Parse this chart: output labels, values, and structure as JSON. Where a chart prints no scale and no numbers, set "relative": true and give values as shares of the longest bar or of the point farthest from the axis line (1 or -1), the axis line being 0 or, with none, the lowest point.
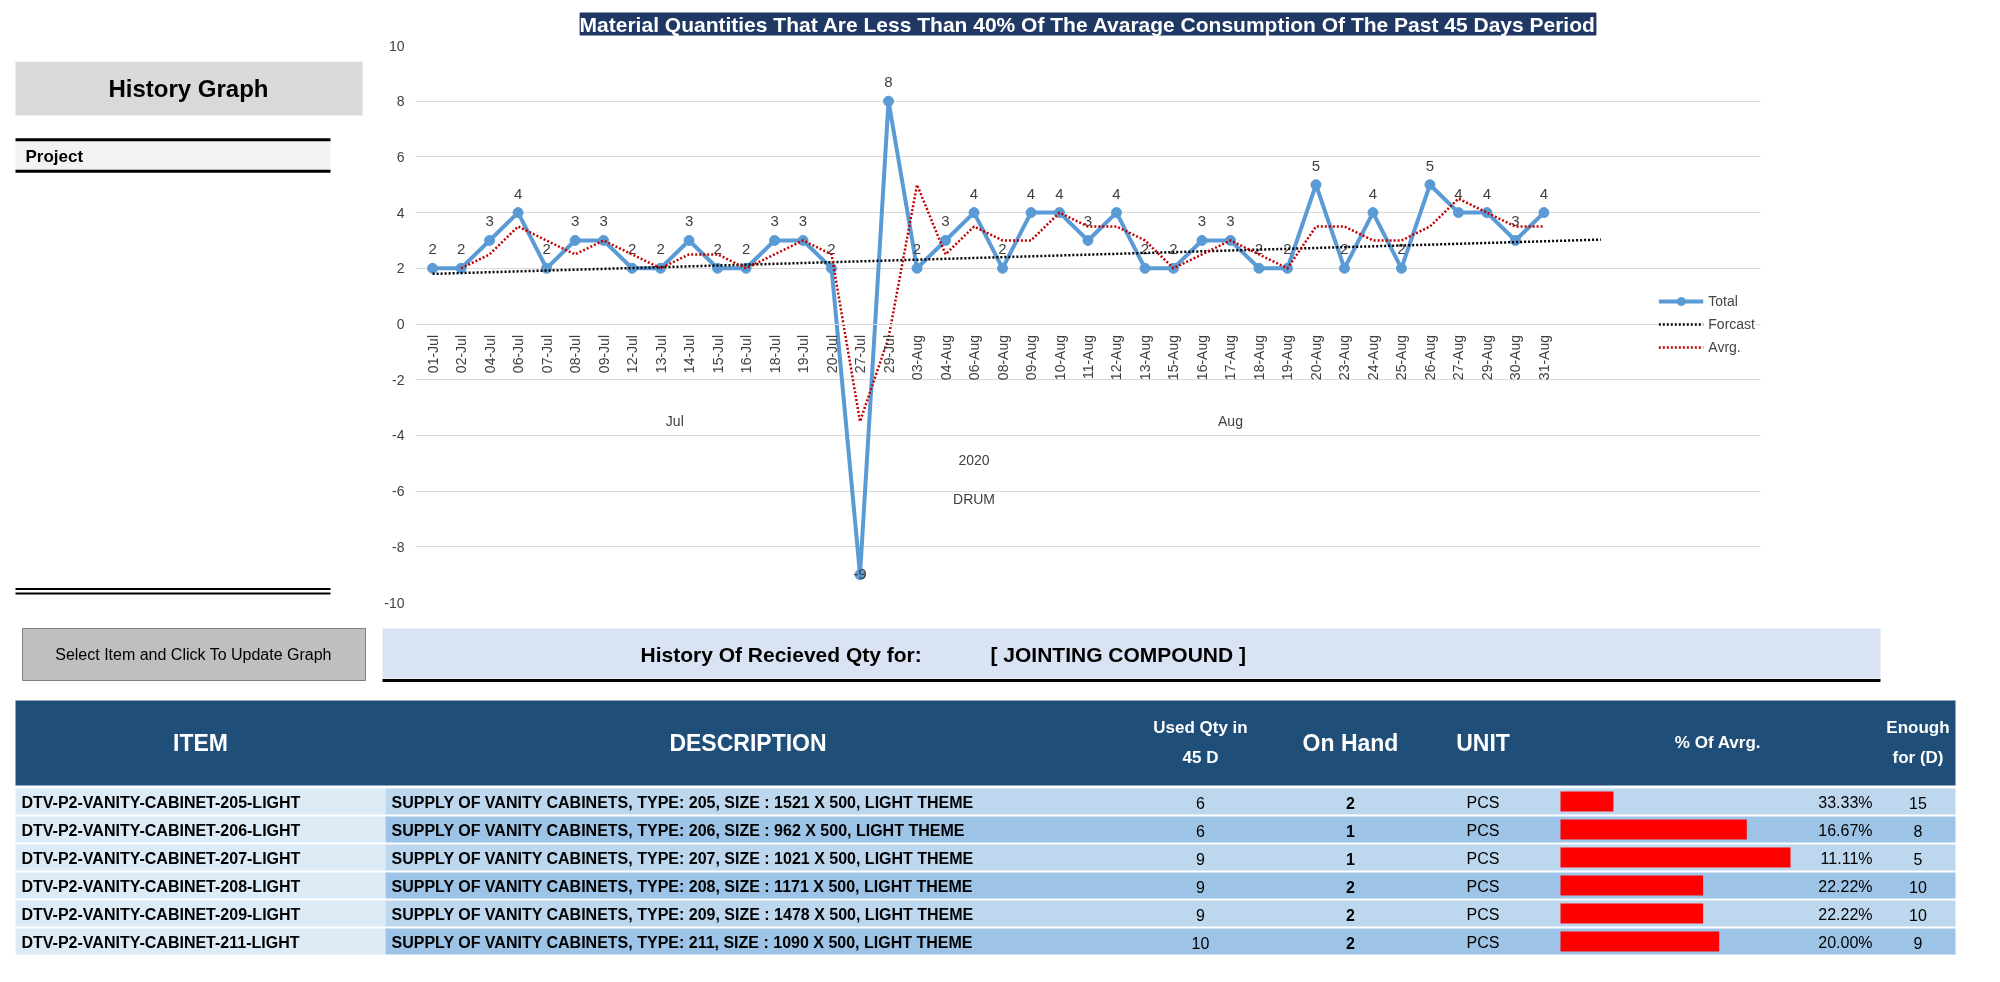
{
  "chart_data": [
    {
      "type": "line",
      "title": "Material Quantities That Are Less Than 40% Of The Avarage Consumption Of The Past 45 Days Period",
      "categories": [
        "01-Jul",
        "02-Jul",
        "04-Jul",
        "06-Jul",
        "07-Jul",
        "08-Jul",
        "09-Jul",
        "12-Jul",
        "13-Jul",
        "14-Jul",
        "15-Jul",
        "16-Jul",
        "18-Jul",
        "19-Jul",
        "20-Jul",
        "27-Jul",
        "29-Jul",
        "03-Aug",
        "04-Aug",
        "06-Aug",
        "08-Aug",
        "09-Aug",
        "10-Aug",
        "11-Aug",
        "12-Aug",
        "13-Aug",
        "15-Aug",
        "16-Aug",
        "17-Aug",
        "18-Aug",
        "19-Aug",
        "20-Aug",
        "23-Aug",
        "24-Aug",
        "25-Aug",
        "26-Aug",
        "27-Aug",
        "29-Aug",
        "30-Aug",
        "31-Aug",
        null,
        null
      ],
      "series": [
        {
          "name": "Total",
          "color": "#5b9bd5",
          "marker": "circle",
          "line_style": "solid",
          "data_labels": true,
          "values": [
            2,
            2,
            3,
            4,
            2,
            3,
            3,
            2,
            2,
            3,
            2,
            2,
            3,
            3,
            2,
            -9,
            8,
            2,
            3,
            4,
            2,
            4,
            4,
            3,
            4,
            2,
            2,
            3,
            3,
            2,
            2,
            5,
            2,
            4,
            2,
            5,
            4,
            4,
            3,
            4,
            null,
            null
          ]
        },
        {
          "name": "Forcast",
          "color": "#000000",
          "marker": "none",
          "line_style": "dotted",
          "values": [
            1.8,
            1.83,
            1.86,
            1.89,
            1.92,
            1.95,
            1.98,
            2.01,
            2.04,
            2.07,
            2.1,
            2.13,
            2.16,
            2.19,
            2.22,
            2.25,
            2.28,
            2.31,
            2.34,
            2.37,
            2.4,
            2.43,
            2.46,
            2.49,
            2.52,
            2.55,
            2.58,
            2.61,
            2.64,
            2.67,
            2.7,
            2.73,
            2.76,
            2.79,
            2.82,
            2.85,
            2.88,
            2.91,
            2.94,
            2.97,
            3.0,
            3.03
          ]
        },
        {
          "name": "Avrg.",
          "color": "#c00000",
          "marker": "none",
          "line_style": "dotted",
          "values": [
            null,
            2,
            2.5,
            3.5,
            3,
            2.5,
            3,
            2.5,
            2,
            2.5,
            2.5,
            2,
            2.5,
            3,
            2.5,
            -3.5,
            -0.5,
            5,
            2.5,
            3.5,
            3,
            3,
            4,
            3.5,
            3.5,
            3,
            2,
            2.5,
            3,
            2.5,
            2,
            3.5,
            3.5,
            3,
            3,
            3.5,
            4.5,
            4,
            3.5,
            3.5,
            null,
            null
          ]
        }
      ],
      "ylim": [
        -10,
        10
      ],
      "yticks": [
        -10,
        -8,
        -6,
        -4,
        -2,
        0,
        2,
        4,
        6,
        8,
        10
      ],
      "grid": "y",
      "legend": "right",
      "annotations": [
        "Jul",
        "Aug",
        "2020",
        "DRUM"
      ]
    },
    {
      "type": "other",
      "title": "History Of Recieved Qty for:",
      "subtitle": "[ JOINTING COMPOUND ]",
      "annotations": [
        "History Graph",
        "Project",
        "Select Item and Click To Update Graph"
      ],
      "categories": [
        "ITEM",
        "DESCRIPTION",
        "Used Qty in 45 D",
        "On Hand",
        "UNIT",
        "% Of Avrg.",
        "Enough for (D)"
      ],
      "cell_labels": [
        [
          "DTV-P2-VANITY-CABINET-205-LIGHT",
          "SUPPLY OF VANITY CABINETS, TYPE: 205, SIZE : 1521 X 500, LIGHT THEME",
          "6",
          "2",
          "PCS",
          "33.33%",
          "15"
        ],
        [
          "DTV-P2-VANITY-CABINET-206-LIGHT",
          "SUPPLY OF VANITY CABINETS, TYPE: 206, SIZE : 962 X 500, LIGHT THEME",
          "6",
          "1",
          "PCS",
          "16.67%",
          "8"
        ],
        [
          "DTV-P2-VANITY-CABINET-207-LIGHT",
          "SUPPLY OF VANITY CABINETS, TYPE: 207, SIZE : 1021 X 500, LIGHT THEME",
          "9",
          "1",
          "PCS",
          "11.11%",
          "5"
        ],
        [
          "DTV-P2-VANITY-CABINET-208-LIGHT",
          "SUPPLY OF VANITY CABINETS, TYPE: 208, SIZE : 1171 X 500, LIGHT THEME",
          "9",
          "2",
          "PCS",
          "22.22%",
          "10"
        ],
        [
          "DTV-P2-VANITY-CABINET-209-LIGHT",
          "SUPPLY OF VANITY CABINETS, TYPE: 209, SIZE : 1478 X 500, LIGHT THEME",
          "9",
          "2",
          "PCS",
          "22.22%",
          "10"
        ],
        [
          "DTV-P2-VANITY-CABINET-211-LIGHT",
          "SUPPLY OF VANITY CABINETS, TYPE: 211, SIZE : 1090 X 500, LIGHT THEME",
          "10",
          "2",
          "PCS",
          "20.00%",
          "9"
        ]
      ]
    },
    {
      "type": "bar",
      "orientation": "horizontal",
      "relative": true,
      "color": "#ff0000",
      "categories": [
        null,
        null,
        null,
        null,
        null,
        null
      ],
      "values": [
        0.23,
        0.81,
        1,
        0.62,
        0.62,
        0.69
      ]
    }
  ]
}
